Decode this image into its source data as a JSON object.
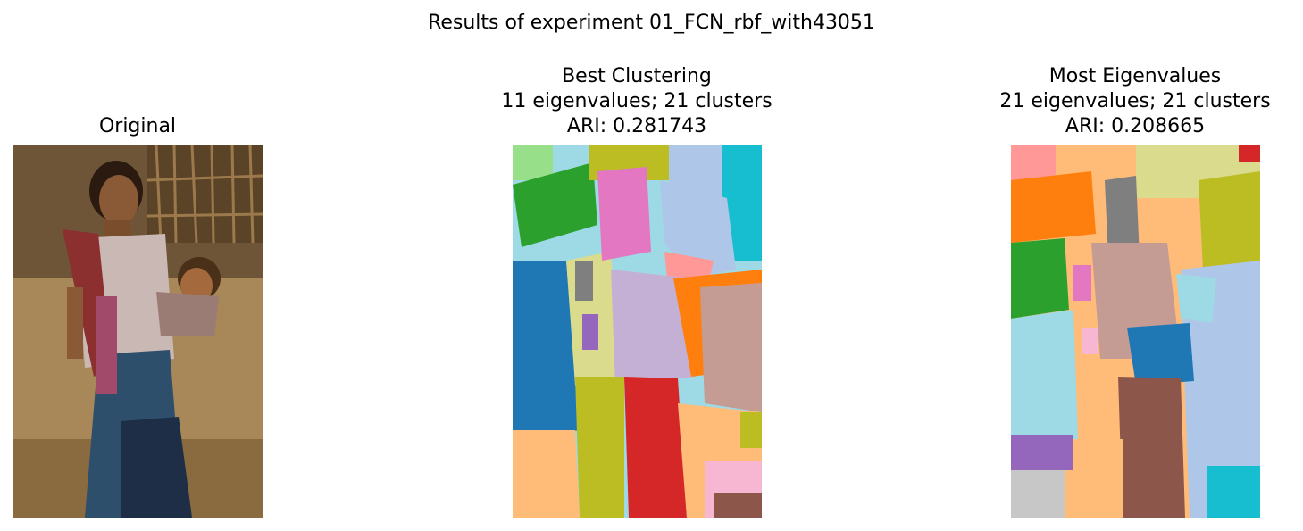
{
  "figure": {
    "title": "Results of experiment 01_FCN_rbf_with43051"
  },
  "panels": [
    {
      "id": "original",
      "title_lines": [
        "Original"
      ],
      "image": "photo of a woman carrying a baby in a sling"
    },
    {
      "id": "best",
      "title_lines": [
        "Best Clustering",
        "11 eigenvalues; 21 clusters",
        "ARI: 0.281743"
      ],
      "eigenvalues": 11,
      "clusters": 21,
      "ari": 0.281743
    },
    {
      "id": "most",
      "title_lines": [
        "Most Eigenvalues",
        "21 eigenvalues; 21 clusters",
        "ARI: 0.208665"
      ],
      "eigenvalues": 21,
      "clusters": 21,
      "ari": 0.208665
    }
  ],
  "palette": {
    "tab20": [
      "#1f77b4",
      "#aec7e8",
      "#ff7f0e",
      "#ffbb78",
      "#2ca02c",
      "#98df8a",
      "#d62728",
      "#ff9896",
      "#9467bd",
      "#c5b0d5",
      "#8c564b",
      "#c49c94",
      "#e377c2",
      "#f7b6d2",
      "#7f7f7f",
      "#c7c7c7",
      "#bcbd22",
      "#dbdb8d",
      "#17becf",
      "#9edae5"
    ]
  }
}
